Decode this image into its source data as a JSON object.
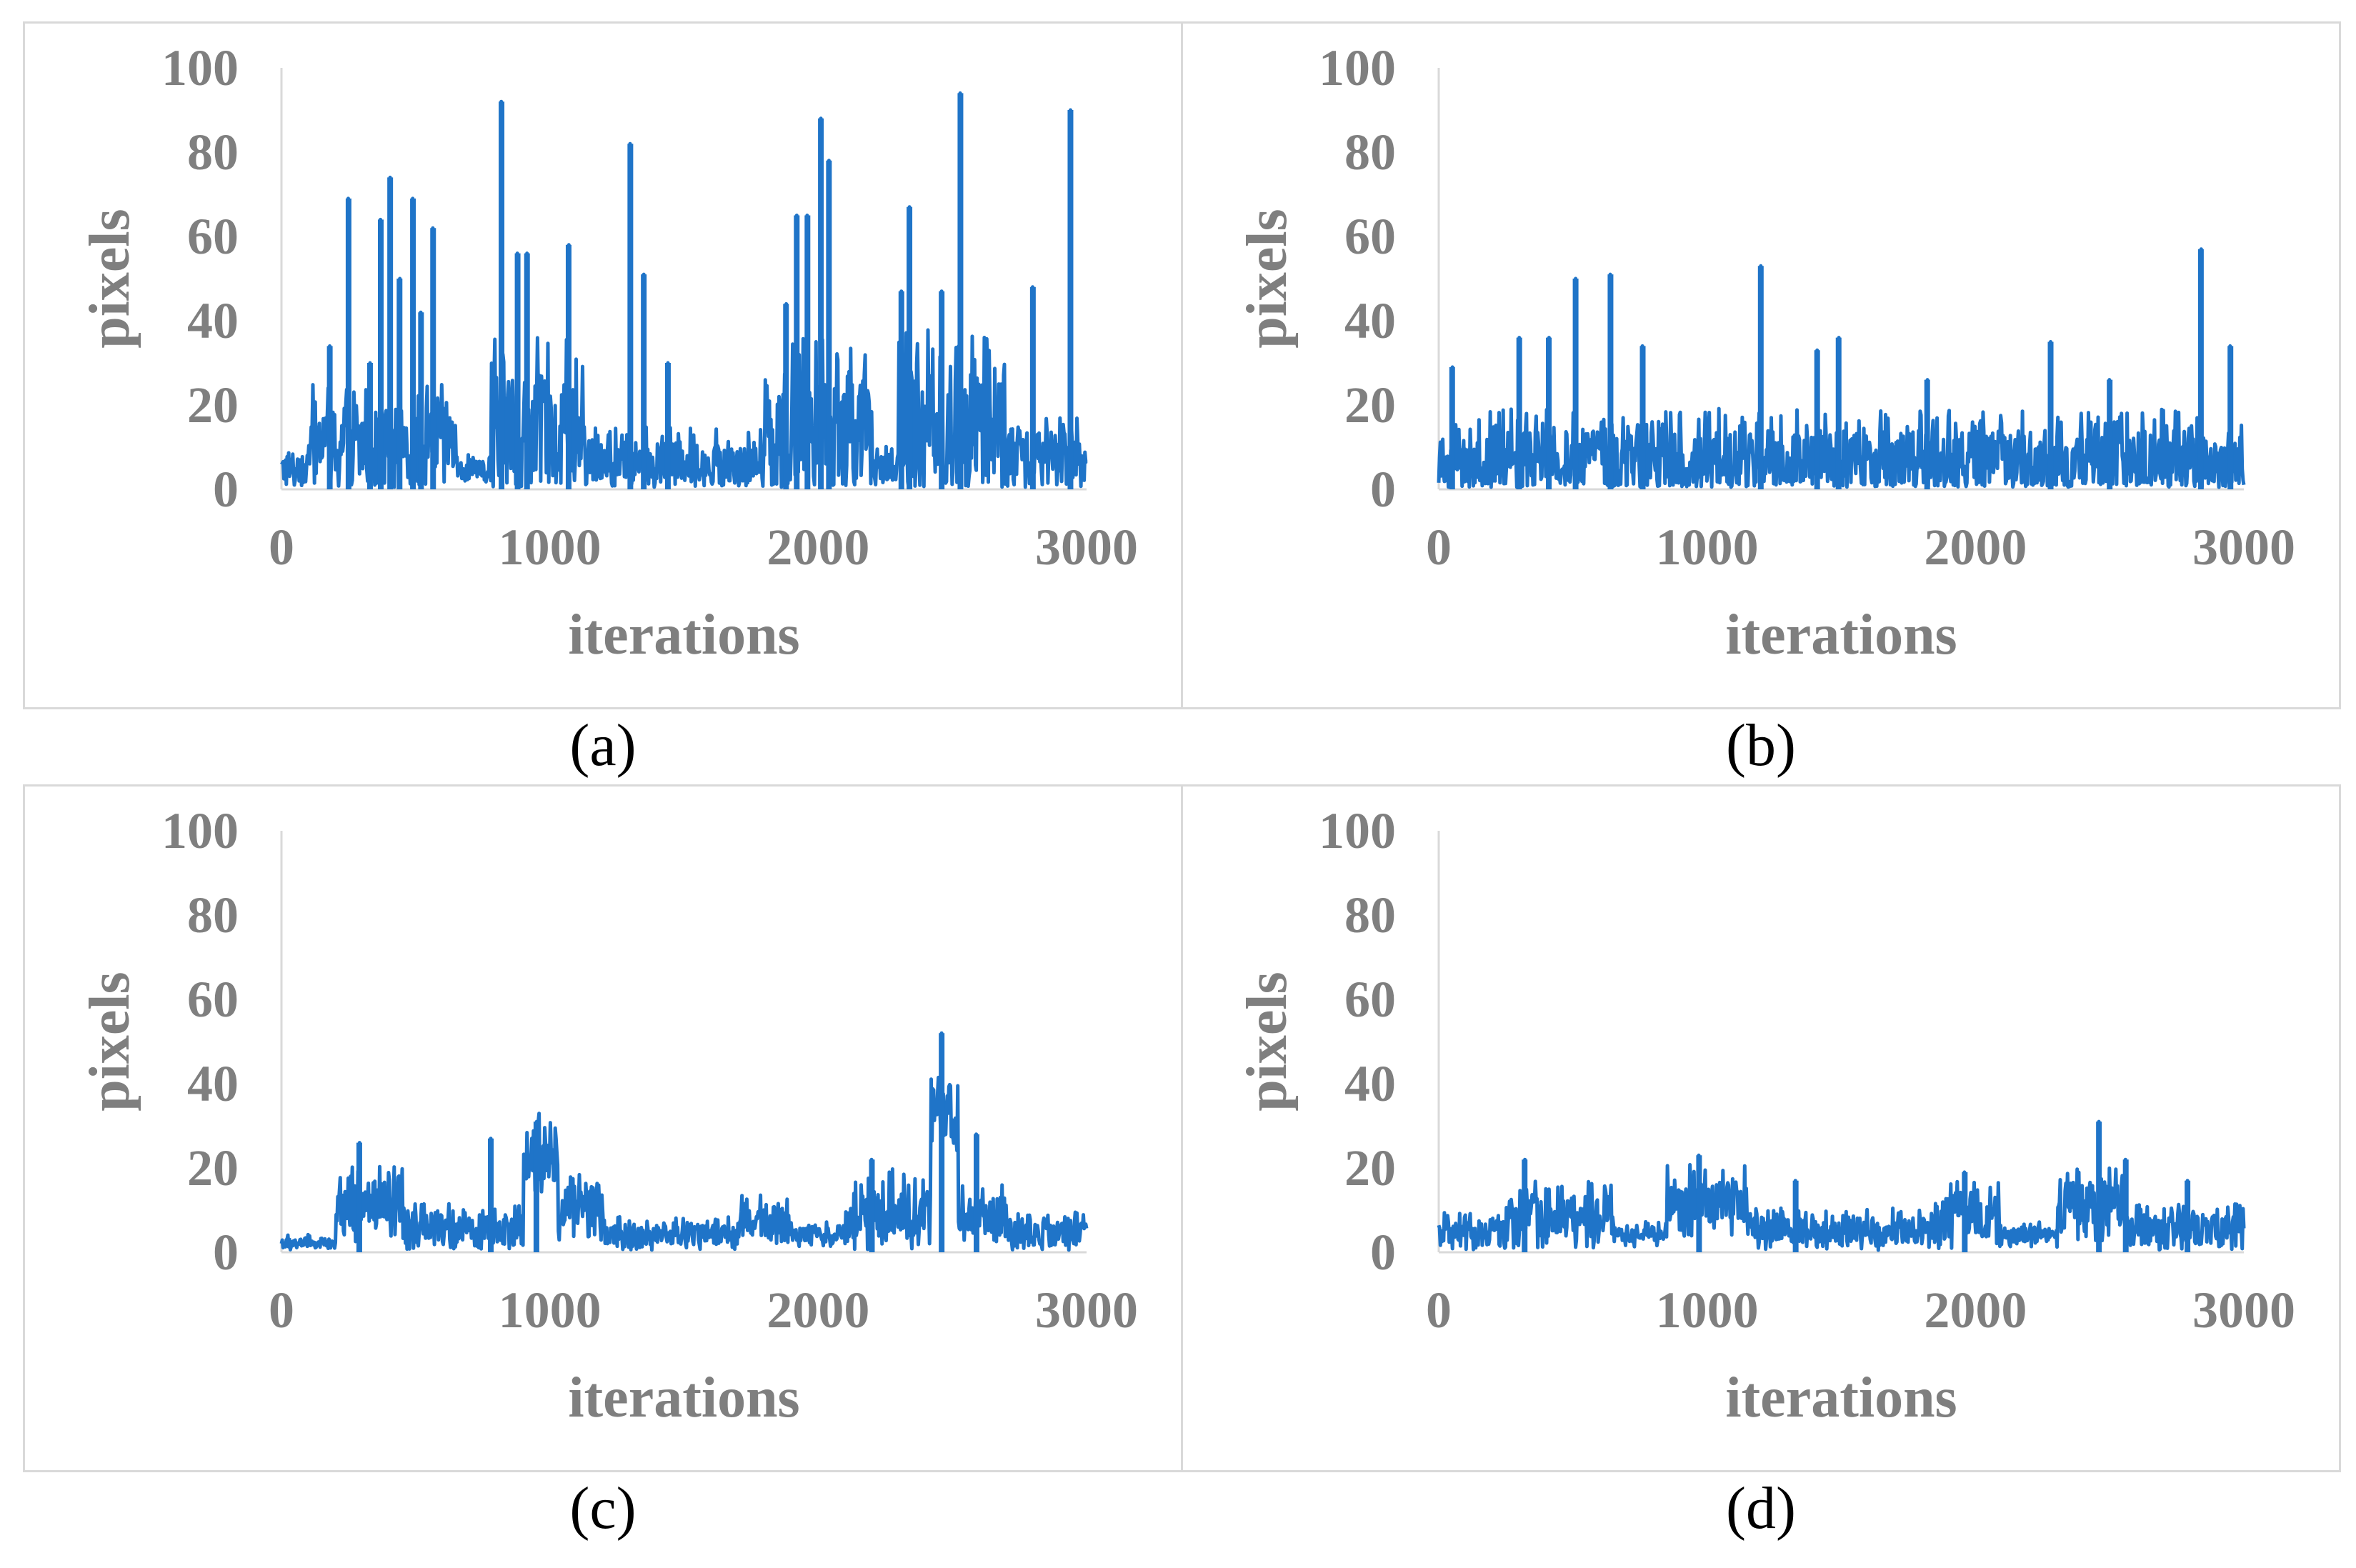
{
  "figure": {
    "panels": [
      {
        "caption": "(a)"
      },
      {
        "caption": "(b)"
      },
      {
        "caption": "(c)"
      },
      {
        "caption": "(d)"
      }
    ]
  },
  "chart_data": [
    {
      "type": "line",
      "panel": "(a)",
      "xlabel": "iterations",
      "ylabel": "pixels",
      "xlim": [
        0,
        3000
      ],
      "ylim": [
        0,
        100
      ],
      "xticks": [
        "0",
        "1000",
        "2000",
        "3000"
      ],
      "yticks": [
        "0",
        "20",
        "40",
        "60",
        "80",
        "100"
      ],
      "color": "#1f74c8",
      "segments": [
        {
          "x": [
            0,
            100
          ],
          "base": 4,
          "amp": 6
        },
        {
          "x": [
            100,
            650
          ],
          "base": 10,
          "amp": 14
        },
        {
          "x": [
            650,
            780
          ],
          "base": 4,
          "amp": 4
        },
        {
          "x": [
            780,
            1130
          ],
          "base": 14,
          "amp": 20
        },
        {
          "x": [
            1130,
            1800
          ],
          "base": 6,
          "amp": 8
        },
        {
          "x": [
            1800,
            2200
          ],
          "base": 14,
          "amp": 20
        },
        {
          "x": [
            2200,
            2300
          ],
          "base": 5,
          "amp": 5
        },
        {
          "x": [
            2300,
            2700
          ],
          "base": 14,
          "amp": 22
        },
        {
          "x": [
            2700,
            3000
          ],
          "base": 8,
          "amp": 10
        }
      ],
      "spikes": [
        {
          "x": 250,
          "y": 69
        },
        {
          "x": 180,
          "y": 34
        },
        {
          "x": 330,
          "y": 30
        },
        {
          "x": 370,
          "y": 64
        },
        {
          "x": 405,
          "y": 74
        },
        {
          "x": 440,
          "y": 50
        },
        {
          "x": 490,
          "y": 69
        },
        {
          "x": 520,
          "y": 42
        },
        {
          "x": 565,
          "y": 62
        },
        {
          "x": 820,
          "y": 92
        },
        {
          "x": 880,
          "y": 56
        },
        {
          "x": 915,
          "y": 56
        },
        {
          "x": 1070,
          "y": 58
        },
        {
          "x": 1300,
          "y": 82
        },
        {
          "x": 1350,
          "y": 51
        },
        {
          "x": 1440,
          "y": 30
        },
        {
          "x": 1880,
          "y": 44
        },
        {
          "x": 1920,
          "y": 65
        },
        {
          "x": 1960,
          "y": 65
        },
        {
          "x": 2010,
          "y": 88
        },
        {
          "x": 2040,
          "y": 78
        },
        {
          "x": 2340,
          "y": 67
        },
        {
          "x": 2310,
          "y": 47
        },
        {
          "x": 2460,
          "y": 47
        },
        {
          "x": 2530,
          "y": 94
        },
        {
          "x": 2800,
          "y": 48
        },
        {
          "x": 2940,
          "y": 90
        }
      ]
    },
    {
      "type": "line",
      "panel": "(b)",
      "xlabel": "iterations",
      "ylabel": "pixels",
      "xlim": [
        0,
        3000
      ],
      "ylim": [
        0,
        100
      ],
      "xticks": [
        "0",
        "1000",
        "2000",
        "3000"
      ],
      "yticks": [
        "0",
        "20",
        "40",
        "60",
        "80",
        "100"
      ],
      "color": "#1f74c8",
      "segments": [
        {
          "x": [
            0,
            3000
          ],
          "base": 6,
          "amp": 12
        }
      ],
      "spikes": [
        {
          "x": 50,
          "y": 29
        },
        {
          "x": 300,
          "y": 36
        },
        {
          "x": 410,
          "y": 36
        },
        {
          "x": 510,
          "y": 50
        },
        {
          "x": 640,
          "y": 51
        },
        {
          "x": 760,
          "y": 34
        },
        {
          "x": 1200,
          "y": 53
        },
        {
          "x": 1410,
          "y": 33
        },
        {
          "x": 1490,
          "y": 36
        },
        {
          "x": 1820,
          "y": 26
        },
        {
          "x": 2280,
          "y": 35
        },
        {
          "x": 2500,
          "y": 26
        },
        {
          "x": 2840,
          "y": 57
        },
        {
          "x": 2950,
          "y": 34
        }
      ]
    },
    {
      "type": "line",
      "panel": "(c)",
      "xlabel": "iterations",
      "ylabel": "pixels",
      "xlim": [
        0,
        3000
      ],
      "ylim": [
        0,
        100
      ],
      "xticks": [
        "0",
        "1000",
        "2000",
        "3000"
      ],
      "yticks": [
        "0",
        "20",
        "40",
        "60",
        "80",
        "100"
      ],
      "color": "#1f74c8",
      "segments": [
        {
          "x": [
            0,
            200
          ],
          "base": 2,
          "amp": 2
        },
        {
          "x": [
            200,
            450
          ],
          "base": 10,
          "amp": 10
        },
        {
          "x": [
            450,
            900
          ],
          "base": 5,
          "amp": 6
        },
        {
          "x": [
            900,
            1030
          ],
          "base": 22,
          "amp": 10
        },
        {
          "x": [
            1030,
            1200
          ],
          "base": 10,
          "amp": 8
        },
        {
          "x": [
            1200,
            1700
          ],
          "base": 4,
          "amp": 4
        },
        {
          "x": [
            1700,
            1900
          ],
          "base": 7,
          "amp": 6
        },
        {
          "x": [
            1900,
            2100
          ],
          "base": 4,
          "amp": 3
        },
        {
          "x": [
            2100,
            2420
          ],
          "base": 9,
          "amp": 10
        },
        {
          "x": [
            2420,
            2520
          ],
          "base": 32,
          "amp": 12
        },
        {
          "x": [
            2520,
            2700
          ],
          "base": 8,
          "amp": 8
        },
        {
          "x": [
            2700,
            3000
          ],
          "base": 4,
          "amp": 5
        }
      ],
      "spikes": [
        {
          "x": 290,
          "y": 26
        },
        {
          "x": 780,
          "y": 27
        },
        {
          "x": 950,
          "y": 31
        },
        {
          "x": 2460,
          "y": 52
        },
        {
          "x": 2590,
          "y": 28
        },
        {
          "x": 2200,
          "y": 22
        }
      ]
    },
    {
      "type": "line",
      "panel": "(d)",
      "xlabel": "iterations",
      "ylabel": "pixels",
      "xlim": [
        0,
        3000
      ],
      "ylim": [
        0,
        100
      ],
      "xticks": [
        "0",
        "1000",
        "2000",
        "3000"
      ],
      "yticks": [
        "0",
        "20",
        "40",
        "60",
        "80",
        "100"
      ],
      "color": "#1f74c8",
      "segments": [
        {
          "x": [
            0,
            250
          ],
          "base": 4,
          "amp": 5
        },
        {
          "x": [
            250,
            650
          ],
          "base": 8,
          "amp": 8
        },
        {
          "x": [
            650,
            850
          ],
          "base": 4,
          "amp": 3
        },
        {
          "x": [
            850,
            1150
          ],
          "base": 11,
          "amp": 9
        },
        {
          "x": [
            1150,
            1850
          ],
          "base": 5,
          "amp": 5
        },
        {
          "x": [
            1850,
            2100
          ],
          "base": 8,
          "amp": 8
        },
        {
          "x": [
            2100,
            2300
          ],
          "base": 4,
          "amp": 3
        },
        {
          "x": [
            2300,
            2550
          ],
          "base": 10,
          "amp": 10
        },
        {
          "x": [
            2550,
            3000
          ],
          "base": 5,
          "amp": 6
        }
      ],
      "spikes": [
        {
          "x": 320,
          "y": 22
        },
        {
          "x": 970,
          "y": 23
        },
        {
          "x": 1330,
          "y": 17
        },
        {
          "x": 1960,
          "y": 19
        },
        {
          "x": 2460,
          "y": 31
        },
        {
          "x": 2560,
          "y": 22
        },
        {
          "x": 2790,
          "y": 17
        }
      ]
    }
  ]
}
